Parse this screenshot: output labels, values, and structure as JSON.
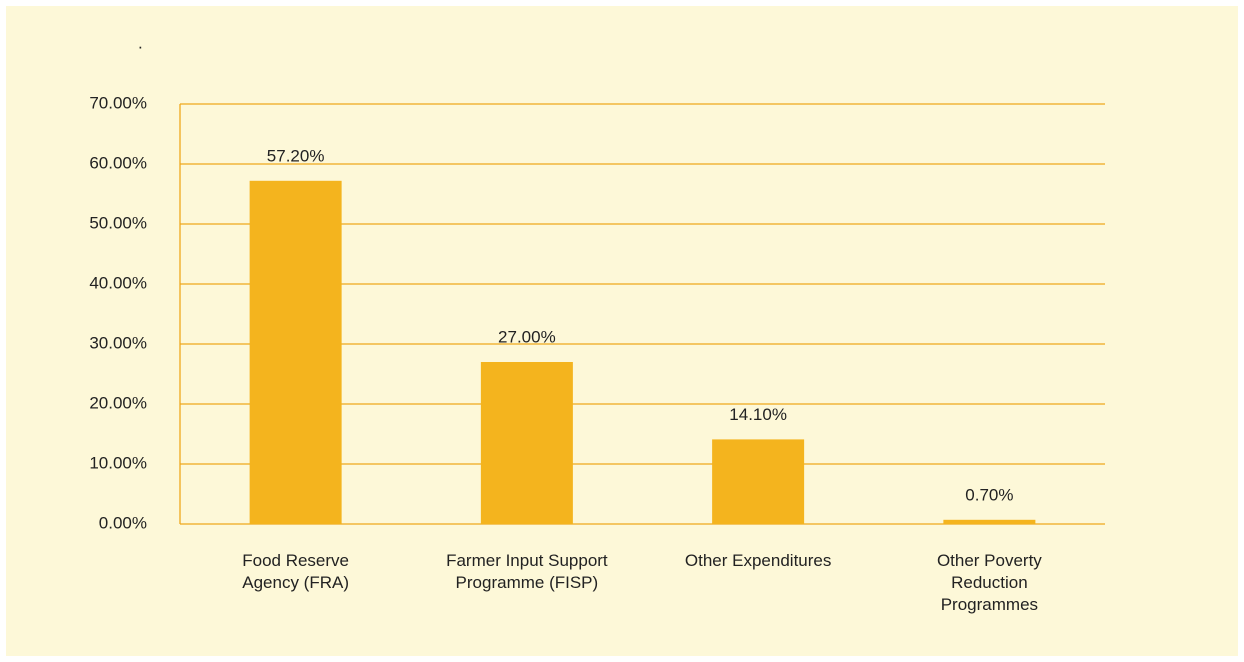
{
  "chart_data": {
    "type": "bar",
    "title": ".",
    "categories": [
      "Food Reserve\nAgency (FRA)",
      "Farmer Input Support\nProgramme (FISP)",
      "Other Expenditures",
      "Other Poverty\nReduction\nProgrammes"
    ],
    "values": [
      57.2,
      27,
      14.1,
      0.7
    ],
    "value_labels": [
      "57.20%",
      "27.00%",
      "14.10%",
      "0.70%"
    ],
    "color": "#f4b41e",
    "grid_color": "#f0a81c",
    "background": "#fdf8d8",
    "ylim": [
      0,
      70
    ],
    "yticks": [
      {
        "value": 0,
        "label": "0.00%"
      },
      {
        "value": 10,
        "label": "10.00%"
      },
      {
        "value": 20,
        "label": "20.00%"
      },
      {
        "value": 30,
        "label": "30.00%"
      },
      {
        "value": 40,
        "label": "40.00%"
      },
      {
        "value": 50,
        "label": "50.00%"
      },
      {
        "value": 60,
        "label": "60.00%"
      },
      {
        "value": 70,
        "label": "70.00%"
      }
    ],
    "grid": true
  }
}
